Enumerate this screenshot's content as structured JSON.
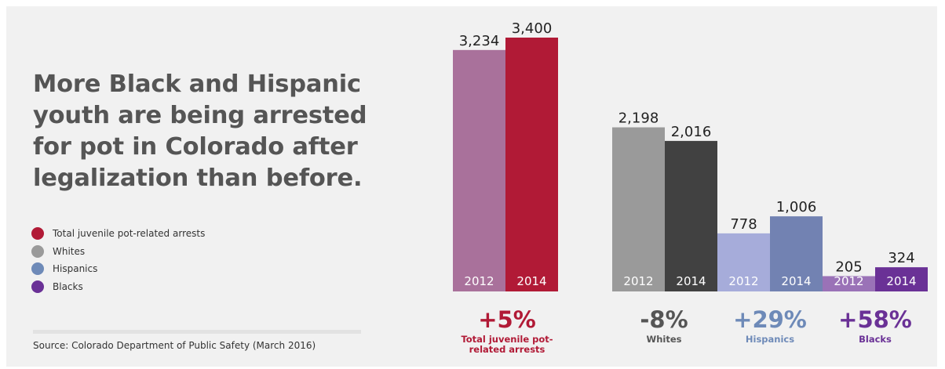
{
  "headline": "More Black and Hispanic youth are being arrested for pot in Colorado after legalization than before.",
  "legend": [
    {
      "label": "Total juvenile pot-related arrests",
      "color": "#b11a36"
    },
    {
      "label": "Whites",
      "color": "#9a9a9a"
    },
    {
      "label": "Hispanics",
      "color": "#6e8ab8"
    },
    {
      "label": "Blacks",
      "color": "#6a3196"
    }
  ],
  "source": "Source:  Colorado Department of Public Safety (March 2016)",
  "chart_data": {
    "type": "bar",
    "ylim": [
      0,
      3400
    ],
    "groups": [
      {
        "name": "Total juvenile pot-related arrests",
        "change": "+5%",
        "label_lines": [
          "Total juvenile pot-",
          "related arrests"
        ],
        "accent": "#b11a36",
        "bars": [
          {
            "year": "2012",
            "value": 3234,
            "label": "3,234",
            "color": "#a9719b"
          },
          {
            "year": "2014",
            "value": 3400,
            "label": "3,400",
            "color": "#b11a36"
          }
        ]
      },
      {
        "name": "Whites",
        "change": "-8%",
        "label_lines": [
          "Whites"
        ],
        "accent": "#555555",
        "bars": [
          {
            "year": "2012",
            "value": 2198,
            "label": "2,198",
            "color": "#9a9a9a"
          },
          {
            "year": "2014",
            "value": 2016,
            "label": "2,016",
            "color": "#414141"
          }
        ]
      },
      {
        "name": "Hispanics",
        "change": "+29%",
        "label_lines": [
          "Hispanics"
        ],
        "accent": "#6e8ab8",
        "bars": [
          {
            "year": "2012",
            "value": 778,
            "label": "778",
            "color": "#a6acda"
          },
          {
            "year": "2014",
            "value": 1006,
            "label": "1,006",
            "color": "#7282b2"
          }
        ]
      },
      {
        "name": "Blacks",
        "change": "+58%",
        "label_lines": [
          "Blacks"
        ],
        "accent": "#6a3196",
        "bars": [
          {
            "year": "2012",
            "value": 205,
            "label": "205",
            "color": "#9a72b7"
          },
          {
            "year": "2014",
            "value": 324,
            "label": "324",
            "color": "#6a3196"
          }
        ]
      }
    ]
  }
}
